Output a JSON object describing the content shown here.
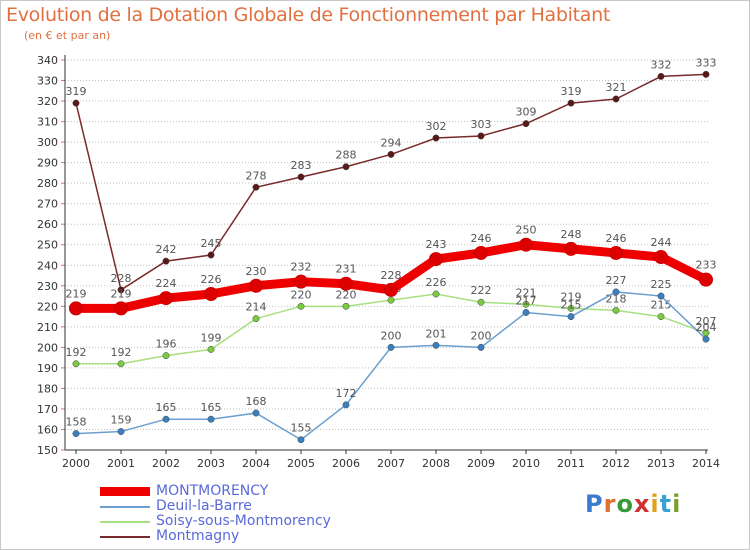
{
  "header": {
    "title": "Evolution de la Dotation Globale de Fonctionnement par Habitant",
    "subtitle": "(en € et par an)"
  },
  "branding": {
    "logo_text": "Proxiti"
  },
  "colors": {
    "title": "#e07040",
    "legend_text": "#5a6ad8",
    "grid": "#c0c0c0",
    "axis": "#333333"
  },
  "chart_data": {
    "type": "line",
    "title": "Evolution de la Dotation Globale de Fonctionnement par Habitant",
    "subtitle": "(en € et par an)",
    "xlabel": "",
    "ylabel": "",
    "x": [
      2000,
      2001,
      2002,
      2003,
      2004,
      2005,
      2006,
      2007,
      2008,
      2009,
      2010,
      2011,
      2012,
      2013,
      2014
    ],
    "ylim": [
      150,
      340
    ],
    "yticks": [
      150,
      160,
      170,
      180,
      190,
      200,
      210,
      220,
      230,
      240,
      250,
      260,
      270,
      280,
      290,
      300,
      310,
      320,
      330,
      340
    ],
    "grid": "horizontal",
    "legend_position": "bottom-left",
    "series": [
      {
        "name": "MONTMORENCY",
        "color": "#ee0000",
        "marker": "#dd0000",
        "bold": true,
        "values": [
          219,
          219,
          224,
          226,
          230,
          232,
          231,
          228,
          243,
          246,
          250,
          248,
          246,
          244,
          233
        ]
      },
      {
        "name": "Deuil-la-Barre",
        "color": "#6b9fcf",
        "marker": "#3a80c0",
        "bold": false,
        "values": [
          158,
          159,
          165,
          165,
          168,
          155,
          172,
          200,
          201,
          200,
          217,
          215,
          227,
          225,
          204
        ]
      },
      {
        "name": "Soisy-sous-Montmorency",
        "color": "#a8e080",
        "marker": "#7acb40",
        "bold": false,
        "values": [
          192,
          192,
          196,
          199,
          214,
          220,
          220,
          223,
          226,
          222,
          221,
          219,
          218,
          215,
          207
        ]
      },
      {
        "name": "Montmagny",
        "color": "#7a2a2a",
        "marker": "#5a1818",
        "bold": false,
        "values": [
          319,
          228,
          242,
          245,
          278,
          283,
          288,
          294,
          302,
          303,
          309,
          319,
          321,
          332,
          333
        ]
      }
    ]
  }
}
